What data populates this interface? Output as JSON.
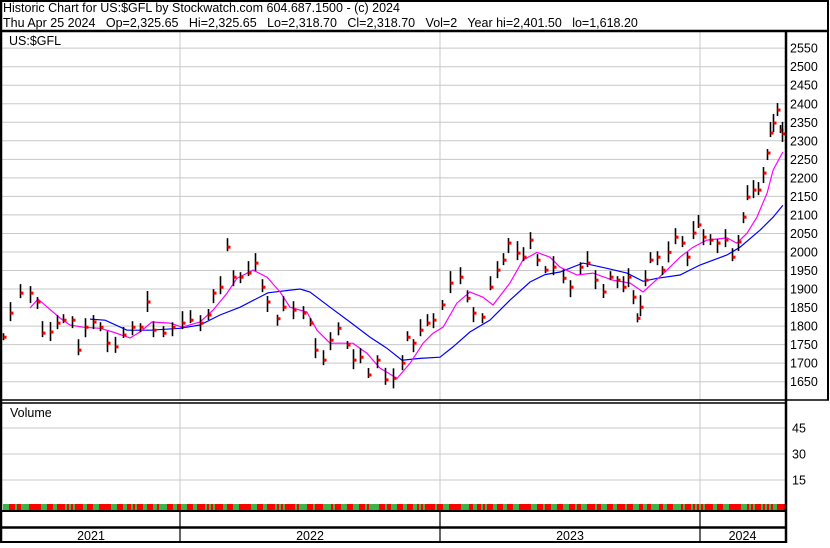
{
  "header": {
    "title": "Historic Chart for US:$GFL by Stockwatch.com 604.687.1500 - (c) 2024",
    "quote": "Thu Apr 25 2024   Op=2,325.65   Hi=2,325.65   Lo=2,318.70   Cl=2,318.70   Vol=2   Year hi=2,401.50   lo=1,618.20"
  },
  "colors": {
    "bar": "#000000",
    "close_tick": "#ff0000",
    "ma_short": "#ff00ff",
    "ma_long": "#0000ff",
    "volume_up": "#3cb44b",
    "volume_down": "#ff0000",
    "grid": "#c8c8c8"
  },
  "chart_data": [
    {
      "type": "line",
      "pane": "price",
      "title": "US:$GFL",
      "xlabel": "",
      "ylabel": "",
      "x_ticks": [
        "2021",
        "2022",
        "2023",
        "2024"
      ],
      "y_ticks": [
        2550,
        2500,
        2450,
        2400,
        2350,
        2300,
        2250,
        2200,
        2150,
        2100,
        2050,
        2000,
        1950,
        1900,
        1850,
        1800,
        1750,
        1700,
        1650
      ],
      "ylim": [
        1600,
        2595
      ],
      "xlim": [
        2021.31,
        2024.32
      ],
      "grid": true,
      "legend": "none",
      "series": [
        {
          "style": "price-bars",
          "points": [
            [
              2021.319,
              1770
            ],
            [
              2021.346,
              1835
            ],
            [
              2021.385,
              1889
            ],
            [
              2021.423,
              1889
            ],
            [
              2021.45,
              1865
            ],
            [
              2021.469,
              1781
            ],
            [
              2021.5,
              1784
            ],
            [
              2021.527,
              1808
            ],
            [
              2021.55,
              1816
            ],
            [
              2021.585,
              1816
            ],
            [
              2021.608,
              1735
            ],
            [
              2021.635,
              1797
            ],
            [
              2021.665,
              1811
            ],
            [
              2021.692,
              1797
            ],
            [
              2021.719,
              1754
            ],
            [
              2021.75,
              1744
            ],
            [
              2021.781,
              1776
            ],
            [
              2021.815,
              1797
            ],
            [
              2021.846,
              1797
            ],
            [
              2021.873,
              1865
            ],
            [
              2021.896,
              1789
            ],
            [
              2021.935,
              1781
            ],
            [
              2021.969,
              1797
            ],
            [
              2022.008,
              1808
            ],
            [
              2022.038,
              1816
            ],
            [
              2022.077,
              1808
            ],
            [
              2022.108,
              1830
            ],
            [
              2022.127,
              1889
            ],
            [
              2022.154,
              1905
            ],
            [
              2022.181,
              2013
            ],
            [
              2022.204,
              1932
            ],
            [
              2022.231,
              1932
            ],
            [
              2022.262,
              1943
            ],
            [
              2022.288,
              1970
            ],
            [
              2022.315,
              1905
            ],
            [
              2022.335,
              1865
            ],
            [
              2022.373,
              1820
            ],
            [
              2022.396,
              1851
            ],
            [
              2022.435,
              1843
            ],
            [
              2022.473,
              1835
            ],
            [
              2022.5,
              1808
            ],
            [
              2022.519,
              1735
            ],
            [
              2022.55,
              1708
            ],
            [
              2022.577,
              1762
            ],
            [
              2022.608,
              1794
            ],
            [
              2022.642,
              1749
            ],
            [
              2022.665,
              1708
            ],
            [
              2022.692,
              1716
            ],
            [
              2022.723,
              1668
            ],
            [
              2022.758,
              1708
            ],
            [
              2022.788,
              1655
            ],
            [
              2022.819,
              1659
            ],
            [
              2022.854,
              1700
            ],
            [
              2022.873,
              1770
            ],
            [
              2022.896,
              1754
            ],
            [
              2022.923,
              1789
            ],
            [
              2022.95,
              1808
            ],
            [
              2022.973,
              1816
            ],
            [
              2023.008,
              1857
            ],
            [
              2023.038,
              1916
            ],
            [
              2023.077,
              1932
            ],
            [
              2023.104,
              1875
            ],
            [
              2023.127,
              1835
            ],
            [
              2023.162,
              1824
            ],
            [
              2023.192,
              1905
            ],
            [
              2023.219,
              1951
            ],
            [
              2023.242,
              1978
            ],
            [
              2023.262,
              2024
            ],
            [
              2023.296,
              1997
            ],
            [
              2023.319,
              1986
            ],
            [
              2023.346,
              2032
            ],
            [
              2023.373,
              1978
            ],
            [
              2023.404,
              1951
            ],
            [
              2023.435,
              1959
            ],
            [
              2023.473,
              1929
            ],
            [
              2023.5,
              1905
            ],
            [
              2023.538,
              1959
            ],
            [
              2023.565,
              1970
            ],
            [
              2023.596,
              1924
            ],
            [
              2023.627,
              1892
            ],
            [
              2023.654,
              1932
            ],
            [
              2023.681,
              1924
            ],
            [
              2023.704,
              1905
            ],
            [
              2023.723,
              1932
            ],
            [
              2023.742,
              1878
            ],
            [
              2023.758,
              1821
            ],
            [
              2023.769,
              1851
            ],
            [
              2023.788,
              1924
            ],
            [
              2023.808,
              1978
            ],
            [
              2023.835,
              1986
            ],
            [
              2023.854,
              1951
            ],
            [
              2023.877,
              1999
            ],
            [
              2023.904,
              2040
            ],
            [
              2023.931,
              2024
            ],
            [
              2023.95,
              1986
            ],
            [
              2023.973,
              2051
            ],
            [
              2023.992,
              2073
            ],
            [
              2024.012,
              2040
            ],
            [
              2024.038,
              2032
            ],
            [
              2024.065,
              2024
            ],
            [
              2024.096,
              2032
            ],
            [
              2024.123,
              1986
            ],
            [
              2024.146,
              2027
            ],
            [
              2024.165,
              2094
            ],
            [
              2024.181,
              2148
            ],
            [
              2024.204,
              2167
            ],
            [
              2024.223,
              2167
            ],
            [
              2024.242,
              2213
            ],
            [
              2024.258,
              2267
            ],
            [
              2024.269,
              2321
            ],
            [
              2024.281,
              2348
            ],
            [
              2024.296,
              2383
            ],
            [
              2024.308,
              2329
            ],
            [
              2024.315,
              2318.7
            ]
          ]
        },
        {
          "style": "moving-average-short",
          "points": [
            [
              2021.423,
              1849
            ],
            [
              2021.454,
              1873
            ],
            [
              2021.538,
              1822
            ],
            [
              2021.577,
              1803
            ],
            [
              2021.627,
              1797
            ],
            [
              2021.692,
              1794
            ],
            [
              2021.742,
              1784
            ],
            [
              2021.808,
              1768
            ],
            [
              2021.846,
              1784
            ],
            [
              2021.892,
              1811
            ],
            [
              2021.962,
              1808
            ],
            [
              2022.008,
              1797
            ],
            [
              2022.077,
              1811
            ],
            [
              2022.127,
              1843
            ],
            [
              2022.181,
              1889
            ],
            [
              2022.219,
              1929
            ],
            [
              2022.281,
              1951
            ],
            [
              2022.335,
              1932
            ],
            [
              2022.385,
              1892
            ],
            [
              2022.423,
              1851
            ],
            [
              2022.488,
              1838
            ],
            [
              2022.527,
              1789
            ],
            [
              2022.577,
              1754
            ],
            [
              2022.665,
              1754
            ],
            [
              2022.719,
              1727
            ],
            [
              2022.769,
              1687
            ],
            [
              2022.835,
              1659
            ],
            [
              2022.885,
              1700
            ],
            [
              2022.935,
              1754
            ],
            [
              2022.973,
              1781
            ],
            [
              2023.012,
              1797
            ],
            [
              2023.065,
              1862
            ],
            [
              2023.115,
              1892
            ],
            [
              2023.165,
              1878
            ],
            [
              2023.204,
              1857
            ],
            [
              2023.269,
              1916
            ],
            [
              2023.319,
              1978
            ],
            [
              2023.373,
              1999
            ],
            [
              2023.423,
              1986
            ],
            [
              2023.462,
              1959
            ],
            [
              2023.527,
              1938
            ],
            [
              2023.588,
              1943
            ],
            [
              2023.665,
              1924
            ],
            [
              2023.731,
              1916
            ],
            [
              2023.781,
              1892
            ],
            [
              2023.819,
              1916
            ],
            [
              2023.873,
              1951
            ],
            [
              2023.923,
              1986
            ],
            [
              2023.973,
              2013
            ],
            [
              2024.027,
              2032
            ],
            [
              2024.104,
              2038
            ],
            [
              2024.142,
              2024
            ],
            [
              2024.181,
              2051
            ],
            [
              2024.219,
              2094
            ],
            [
              2024.258,
              2159
            ],
            [
              2024.281,
              2221
            ],
            [
              2024.319,
              2270
            ]
          ]
        },
        {
          "style": "moving-average-long",
          "points": [
            [
              2021.654,
              1819
            ],
            [
              2021.712,
              1816
            ],
            [
              2021.796,
              1789
            ],
            [
              2021.885,
              1789
            ],
            [
              2022.0,
              1794
            ],
            [
              2022.077,
              1803
            ],
            [
              2022.154,
              1830
            ],
            [
              2022.231,
              1851
            ],
            [
              2022.338,
              1890
            ],
            [
              2022.462,
              1900
            ],
            [
              2022.5,
              1892
            ],
            [
              2022.577,
              1851
            ],
            [
              2022.654,
              1811
            ],
            [
              2022.731,
              1770
            ],
            [
              2022.796,
              1740
            ],
            [
              2022.854,
              1708
            ],
            [
              2022.923,
              1713
            ],
            [
              2023.0,
              1716
            ],
            [
              2023.05,
              1744
            ],
            [
              2023.115,
              1784
            ],
            [
              2023.192,
              1816
            ],
            [
              2023.269,
              1870
            ],
            [
              2023.346,
              1919
            ],
            [
              2023.404,
              1939
            ],
            [
              2023.462,
              1946
            ],
            [
              2023.55,
              1970
            ],
            [
              2023.642,
              1956
            ],
            [
              2023.719,
              1943
            ],
            [
              2023.781,
              1921
            ],
            [
              2023.835,
              1929
            ],
            [
              2023.923,
              1938
            ],
            [
              2024.0,
              1965
            ],
            [
              2024.104,
              1992
            ],
            [
              2024.154,
              2013
            ],
            [
              2024.231,
              2059
            ],
            [
              2024.281,
              2094
            ],
            [
              2024.319,
              2126
            ]
          ]
        }
      ]
    },
    {
      "type": "bar",
      "pane": "volume",
      "title": "Volume",
      "y_ticks": [
        45,
        30,
        15
      ],
      "ylim": [
        0,
        58
      ],
      "grid": true
    }
  ]
}
